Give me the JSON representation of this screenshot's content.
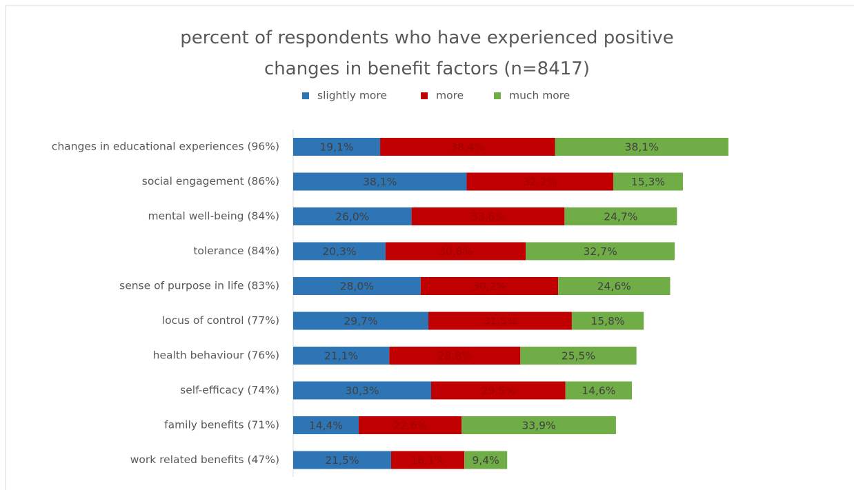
{
  "chart_data": {
    "type": "stacked-bar-horizontal",
    "title": "percent of respondents who have experienced positive changes in benefit factors (n=8417)",
    "categories": [
      "changes in educational experiences (96%)",
      "social engagement (86%)",
      "mental well-being (84%)",
      "tolerance (84%)",
      "sense of purpose in life (83%)",
      "locus of control (77%)",
      "health behaviour (76%)",
      "self-efficacy (74%)",
      "family benefits (71%)",
      "work related benefits (47%)"
    ],
    "series": [
      {
        "name": "slightly more",
        "color": "#2e75b6",
        "values": [
          19.1,
          38.1,
          26.0,
          20.3,
          28.0,
          29.7,
          21.1,
          30.3,
          14.4,
          21.5
        ],
        "value_labels": [
          "19,1%",
          "38,1%",
          "26,0%",
          "20,3%",
          "28,0%",
          "29,7%",
          "21,1%",
          "30,3%",
          "14,4%",
          "21,5%"
        ]
      },
      {
        "name": "more",
        "color": "#c00000",
        "values": [
          38.4,
          32.2,
          33.6,
          30.8,
          30.2,
          31.5,
          28.8,
          29.5,
          22.6,
          16.1
        ],
        "value_labels": [
          "38,4%",
          "32,2%",
          "33,6%",
          "30,8%",
          "30,2%",
          "31,5%",
          "28,8%",
          "29,5%",
          "22,6%",
          "16,1%"
        ]
      },
      {
        "name": "much more",
        "color": "#70ad47",
        "values": [
          38.1,
          15.3,
          24.7,
          32.7,
          24.6,
          15.8,
          25.5,
          14.6,
          33.9,
          9.4
        ],
        "value_labels": [
          "38,1%",
          "15,3%",
          "24,7%",
          "32,7%",
          "24,6%",
          "15,8%",
          "25,5%",
          "14,6%",
          "33,9%",
          "9,4%"
        ]
      }
    ],
    "xlim": [
      0,
      100
    ],
    "legend": "top"
  }
}
